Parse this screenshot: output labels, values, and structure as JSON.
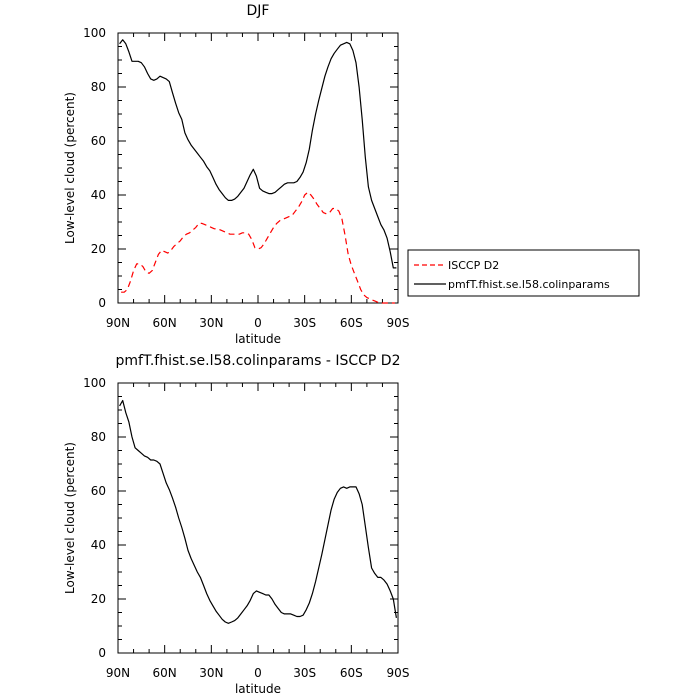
{
  "chart_data": [
    {
      "type": "line",
      "title": "DJF",
      "xlabel": "latitude",
      "ylabel": "Low-level cloud (percent)",
      "xlim": [
        -90,
        90
      ],
      "ylim": [
        0,
        100
      ],
      "xticks": [
        -90,
        -60,
        -30,
        0,
        30,
        60,
        90
      ],
      "xtick_labels": [
        "90N",
        "60N",
        "30N",
        "0",
        "30S",
        "60S",
        "90S"
      ],
      "yticks": [
        0,
        20,
        40,
        60,
        80,
        100
      ],
      "ytick_labels": [
        "0",
        "20",
        "40",
        "60",
        "80",
        "100"
      ],
      "legend": {
        "position": "right",
        "entries": [
          "ISCCP D2",
          "pmfT.fhist.se.l58.colinparams"
        ]
      },
      "series": [
        {
          "name": "ISCCP D2",
          "color": "#ff0000",
          "dash": "dashed",
          "x": [
            -88,
            -86,
            -84,
            -82,
            -80,
            -78,
            -76,
            -74,
            -72,
            -70,
            -68,
            -66,
            -64,
            -62,
            -60,
            -58,
            -56,
            -54,
            -52,
            -50,
            -48,
            -46,
            -44,
            -42,
            -40,
            -38,
            -36,
            -34,
            -32,
            -30,
            -28,
            -26,
            -24,
            -22,
            -20,
            -18,
            -16,
            -14,
            -12,
            -10,
            -8,
            -6,
            -4,
            -2,
            0,
            2,
            4,
            6,
            8,
            10,
            12,
            14,
            16,
            18,
            20,
            22,
            24,
            26,
            28,
            30,
            32,
            34,
            36,
            38,
            40,
            42,
            44,
            46,
            48,
            50,
            52,
            54,
            56,
            58,
            60,
            62,
            64,
            66,
            68,
            70,
            72,
            74,
            76,
            78,
            80,
            82,
            84,
            86,
            88
          ],
          "y": [
            4,
            4,
            5,
            8,
            12,
            14.5,
            14.5,
            13.5,
            11.5,
            11,
            12,
            15,
            18,
            19.5,
            19,
            18.5,
            19.5,
            21,
            22,
            23,
            24.5,
            25.5,
            26,
            27,
            28,
            29.5,
            29.5,
            29,
            28.5,
            28,
            27.5,
            27.5,
            27,
            26.5,
            26,
            25.5,
            25.5,
            25.5,
            25.5,
            26,
            26,
            25.5,
            23.5,
            20.5,
            20,
            20.5,
            22,
            24,
            26,
            28,
            29.5,
            30.5,
            31,
            31.5,
            32,
            32.5,
            34,
            35.5,
            37.5,
            40,
            41,
            40,
            38.5,
            36.5,
            35,
            33.5,
            33,
            33.5,
            35,
            35,
            34,
            31,
            25,
            18,
            14,
            11,
            8,
            5,
            3,
            2,
            1.5,
            1,
            0.5,
            0,
            0,
            0,
            0,
            0,
            0
          ]
        },
        {
          "name": "pmfT.fhist.se.l58.colinparams",
          "color": "#000000",
          "dash": "solid",
          "x": [
            -89,
            -87,
            -85,
            -83,
            -81,
            -79,
            -77,
            -75,
            -73,
            -71,
            -69,
            -67,
            -65,
            -63,
            -61,
            -59,
            -57,
            -55,
            -53,
            -51,
            -49,
            -47,
            -45,
            -43,
            -41,
            -39,
            -37,
            -35,
            -33,
            -31,
            -29,
            -27,
            -25,
            -23,
            -21,
            -19,
            -17,
            -15,
            -13,
            -11,
            -9,
            -7,
            -5,
            -3,
            -1,
            1,
            3,
            5,
            7,
            9,
            11,
            13,
            15,
            17,
            19,
            21,
            23,
            25,
            27,
            29,
            31,
            33,
            35,
            37,
            39,
            41,
            43,
            45,
            47,
            49,
            51,
            53,
            55,
            57,
            59,
            61,
            63,
            65,
            67,
            69,
            71,
            73,
            75,
            77,
            79,
            81,
            83,
            85,
            87,
            89
          ],
          "y": [
            96,
            97.5,
            96,
            93,
            89.5,
            89.5,
            89.5,
            89,
            87.5,
            85,
            83,
            82.5,
            83,
            84,
            83.5,
            83,
            82,
            78,
            74,
            70.5,
            68,
            63,
            60.5,
            58.5,
            57,
            55.5,
            54,
            52.5,
            50.5,
            49,
            46.5,
            44,
            42,
            40.5,
            39,
            38,
            38,
            38.5,
            39.5,
            41,
            42.5,
            45,
            47.5,
            49.5,
            47,
            42.5,
            41.5,
            41,
            40.5,
            40.5,
            41,
            42,
            43,
            44,
            44.5,
            44.5,
            44.5,
            45,
            46.5,
            48.5,
            52,
            57,
            64,
            70,
            75,
            79.5,
            84,
            87.5,
            90.5,
            92.5,
            94,
            95.5,
            96,
            96.5,
            96,
            93.5,
            89,
            80,
            68,
            54,
            43,
            38,
            35,
            32,
            29,
            27,
            24,
            19,
            13,
            13
          ]
        }
      ]
    },
    {
      "type": "line",
      "title": "pmfT.fhist.se.l58.colinparams - ISCCP D2",
      "xlabel": "latitude",
      "ylabel": "Low-level cloud (percent)",
      "xlim": [
        -90,
        90
      ],
      "ylim": [
        0,
        100
      ],
      "xticks": [
        -90,
        -60,
        -30,
        0,
        30,
        60,
        90
      ],
      "xtick_labels": [
        "90N",
        "60N",
        "30N",
        "0",
        "30S",
        "60S",
        "90S"
      ],
      "yticks": [
        0,
        20,
        40,
        60,
        80,
        100
      ],
      "ytick_labels": [
        "0",
        "20",
        "40",
        "60",
        "80",
        "100"
      ],
      "series": [
        {
          "color": "#000000",
          "dash": "solid",
          "x": [
            -89,
            -87,
            -85,
            -83,
            -81,
            -79,
            -77,
            -75,
            -73,
            -71,
            -69,
            -67,
            -65,
            -63,
            -61,
            -59,
            -57,
            -55,
            -53,
            -51,
            -49,
            -47,
            -45,
            -43,
            -41,
            -39,
            -37,
            -35,
            -33,
            -31,
            -29,
            -27,
            -25,
            -23,
            -21,
            -19,
            -17,
            -15,
            -13,
            -11,
            -9,
            -7,
            -5,
            -3,
            -1,
            1,
            3,
            5,
            7,
            9,
            11,
            13,
            15,
            17,
            19,
            21,
            23,
            25,
            27,
            29,
            31,
            33,
            35,
            37,
            39,
            41,
            43,
            45,
            47,
            49,
            51,
            53,
            55,
            57,
            59,
            61,
            63,
            65,
            67,
            69,
            71,
            73,
            75,
            77,
            79,
            81,
            83,
            85,
            87,
            89
          ],
          "y": [
            91.5,
            93.5,
            89,
            85.5,
            80,
            76,
            75,
            74,
            73,
            72.5,
            71.5,
            71.5,
            71,
            70,
            66.5,
            63,
            60.5,
            57.5,
            54,
            50,
            46.5,
            42.5,
            38,
            35,
            32.5,
            30,
            28,
            25,
            22,
            19.5,
            17.5,
            15.5,
            14,
            12.5,
            11.5,
            11,
            11.5,
            12,
            13,
            14.5,
            16,
            17.5,
            19.5,
            22,
            23,
            22.5,
            22,
            21.5,
            21.5,
            20,
            18,
            16.5,
            15,
            14.5,
            14.5,
            14.5,
            14,
            13.5,
            13.5,
            14,
            16,
            18.5,
            22,
            26.5,
            31.5,
            36.5,
            42,
            47.5,
            53,
            57,
            59.5,
            61,
            61.5,
            61,
            61.5,
            61.5,
            61.5,
            59,
            55,
            47,
            39,
            31.5,
            29.5,
            28,
            28,
            27,
            25.5,
            23,
            20,
            13
          ]
        }
      ]
    }
  ]
}
